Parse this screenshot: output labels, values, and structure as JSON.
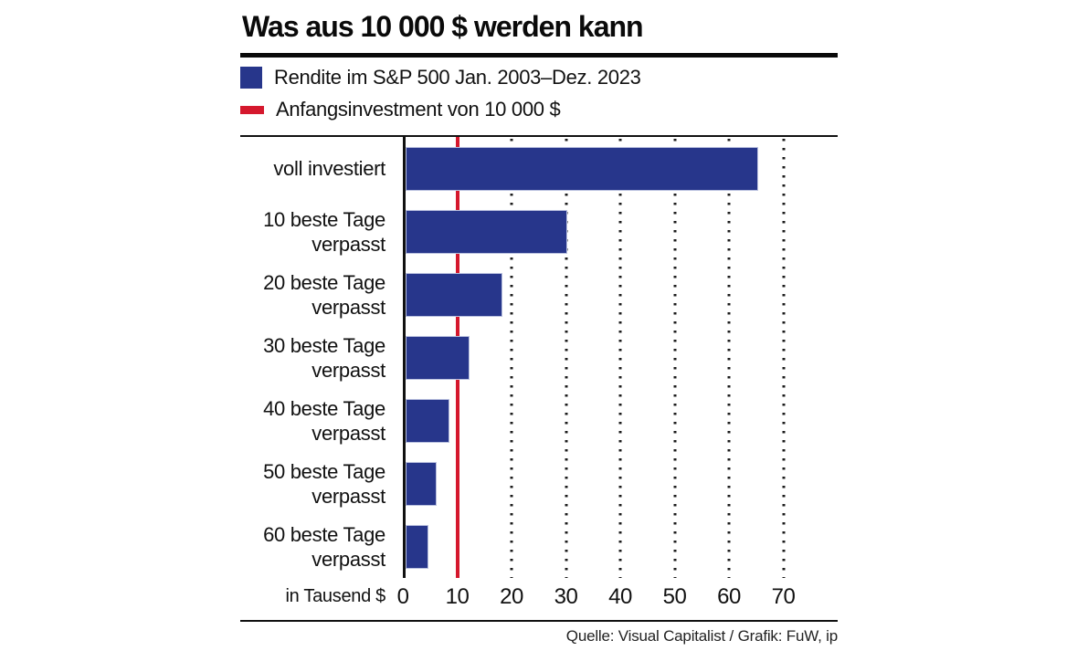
{
  "title": "Was aus 10 000 $ werden kann",
  "legend": [
    {
      "label": "Rendite im S&P 500 Jan. 2003–Dez. 2023",
      "color": "#27368b",
      "shape": "square"
    },
    {
      "label": "Anfangsinvestment von 10 000 $",
      "color": "#d5182d",
      "shape": "dash"
    }
  ],
  "source": "Quelle: Visual Capitalist / Grafik: FuW, ip",
  "chart_data": {
    "type": "bar",
    "orientation": "horizontal",
    "title": "Was aus 10 000 $ werden kann",
    "categories": [
      "voll investiert",
      "10 beste Tage verpasst",
      "20 beste Tage verpasst",
      "30 beste Tage verpasst",
      "40 beste Tage verpasst",
      "50 beste Tage verpasst",
      "60 beste Tage verpasst"
    ],
    "category_lines": [
      [
        "voll investiert"
      ],
      [
        "10 beste Tage",
        "verpasst"
      ],
      [
        "20 beste Tage",
        "verpasst"
      ],
      [
        "30 beste Tage",
        "verpasst"
      ],
      [
        "40 beste Tage",
        "verpasst"
      ],
      [
        "50 beste Tage",
        "verpasst"
      ],
      [
        "60 beste Tage",
        "verpasst"
      ]
    ],
    "values": [
      64.8,
      29.7,
      17.8,
      11.7,
      8.0,
      5.7,
      4.2
    ],
    "series_name": "Rendite im S&P 500 Jan. 2003–Dez. 2023",
    "xlabel": "in Tausend $",
    "ylabel": "",
    "xlim": [
      0,
      80
    ],
    "ticks": [
      0,
      10,
      20,
      30,
      40,
      50,
      60,
      70
    ],
    "gridlines": [
      20,
      30,
      40,
      50,
      60,
      70
    ],
    "grid_style": "dotted-vertical",
    "bar_color": "#27368b",
    "axis_color": "#111111",
    "reference_line": {
      "value": 10,
      "label": "Anfangsinvestment von 10 000 $",
      "color": "#d5182d"
    },
    "legend_position": "top"
  }
}
